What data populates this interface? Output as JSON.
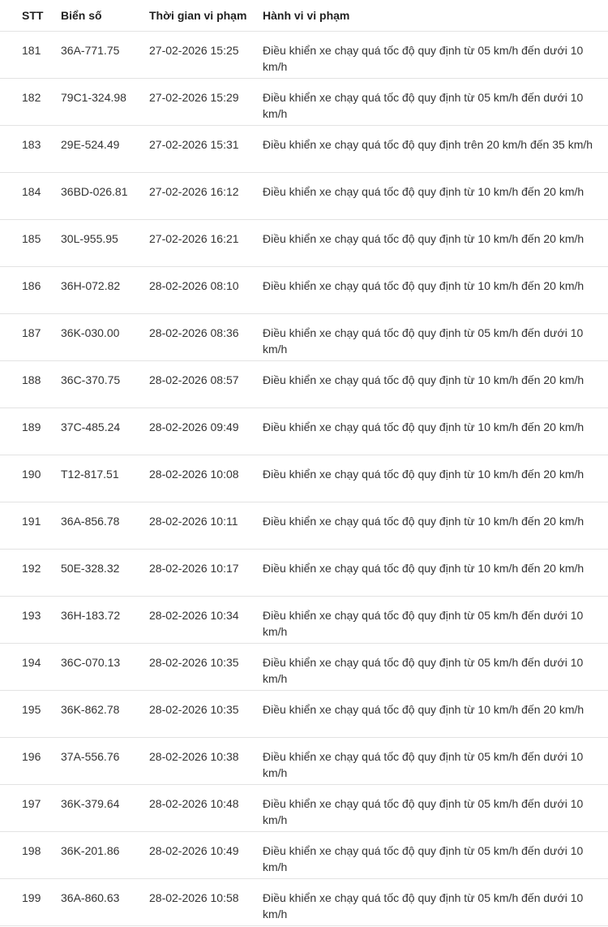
{
  "table": {
    "headers": [
      "STT",
      "Biển số",
      "Thời gian vi phạm",
      "Hành vi vi phạm"
    ],
    "rows": [
      {
        "stt": "181",
        "plate": "36A-771.75",
        "time": "27-02-2026 15:25",
        "violation": "Điều khiển xe chạy quá tốc độ quy định từ 05 km/h đến dưới 10 km/h"
      },
      {
        "stt": "182",
        "plate": "79C1-324.98",
        "time": "27-02-2026 15:29",
        "violation": "Điều khiển xe chạy quá tốc độ quy định từ 05 km/h đến dưới 10 km/h"
      },
      {
        "stt": "183",
        "plate": "29E-524.49",
        "time": "27-02-2026 15:31",
        "violation": "Điều khiển xe chạy quá tốc độ quy định trên 20 km/h đến 35 km/h"
      },
      {
        "stt": "184",
        "plate": "36BD-026.81",
        "time": "27-02-2026 16:12",
        "violation": "Điều khiển xe chạy quá tốc độ quy định từ 10 km/h đến 20 km/h"
      },
      {
        "stt": "185",
        "plate": "30L-955.95",
        "time": "27-02-2026 16:21",
        "violation": "Điều khiển xe chạy quá tốc độ quy định từ 10 km/h đến 20 km/h"
      },
      {
        "stt": "186",
        "plate": "36H-072.82",
        "time": "28-02-2026 08:10",
        "violation": "Điều khiển xe chạy quá tốc độ quy định từ 10 km/h đến 20 km/h"
      },
      {
        "stt": "187",
        "plate": "36K-030.00",
        "time": "28-02-2026 08:36",
        "violation": "Điều khiển xe chạy quá tốc độ quy định từ 05 km/h đến dưới 10 km/h"
      },
      {
        "stt": "188",
        "plate": "36C-370.75",
        "time": "28-02-2026 08:57",
        "violation": "Điều khiển xe chạy quá tốc độ quy định từ 10 km/h đến 20 km/h"
      },
      {
        "stt": "189",
        "plate": "37C-485.24",
        "time": "28-02-2026 09:49",
        "violation": "Điều khiển xe chạy quá tốc độ quy định từ 10 km/h đến 20 km/h"
      },
      {
        "stt": "190",
        "plate": "T12-817.51",
        "time": "28-02-2026 10:08",
        "violation": "Điều khiển xe chạy quá tốc độ quy định từ 10 km/h đến 20 km/h"
      },
      {
        "stt": "191",
        "plate": "36A-856.78",
        "time": "28-02-2026 10:11",
        "violation": "Điều khiển xe chạy quá tốc độ quy định từ 10 km/h đến 20 km/h"
      },
      {
        "stt": "192",
        "plate": "50E-328.32",
        "time": "28-02-2026 10:17",
        "violation": "Điều khiển xe chạy quá tốc độ quy định từ 10 km/h đến 20 km/h"
      },
      {
        "stt": "193",
        "plate": "36H-183.72",
        "time": "28-02-2026 10:34",
        "violation": "Điều khiển xe chạy quá tốc độ quy định từ 05 km/h đến dưới 10 km/h"
      },
      {
        "stt": "194",
        "plate": "36C-070.13",
        "time": "28-02-2026 10:35",
        "violation": "Điều khiển xe chạy quá tốc độ quy định từ 05 km/h đến dưới 10 km/h"
      },
      {
        "stt": "195",
        "plate": "36K-862.78",
        "time": "28-02-2026 10:35",
        "violation": "Điều khiển xe chạy quá tốc độ quy định từ 10 km/h đến 20 km/h"
      },
      {
        "stt": "196",
        "plate": "37A-556.76",
        "time": "28-02-2026 10:38",
        "violation": "Điều khiển xe chạy quá tốc độ quy định từ 05 km/h đến dưới 10 km/h"
      },
      {
        "stt": "197",
        "plate": "36K-379.64",
        "time": "28-02-2026 10:48",
        "violation": "Điều khiển xe chạy quá tốc độ quy định từ 05 km/h đến dưới 10 km/h"
      },
      {
        "stt": "198",
        "plate": "36K-201.86",
        "time": "28-02-2026 10:49",
        "violation": "Điều khiển xe chạy quá tốc độ quy định từ 05 km/h đến dưới 10 km/h"
      },
      {
        "stt": "199",
        "plate": "36A-860.63",
        "time": "28-02-2026 10:58",
        "violation": "Điều khiển xe chạy quá tốc độ quy định từ 05 km/h đến dưới 10 km/h"
      }
    ]
  }
}
